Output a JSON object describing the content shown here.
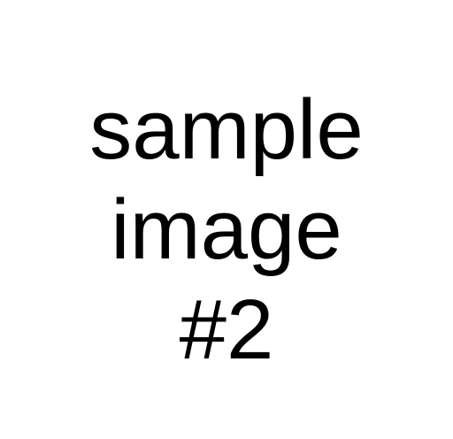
{
  "lines": [
    "sample",
    "image",
    "#2"
  ],
  "colors": {
    "background": "#ffffff",
    "text": "#000000"
  }
}
